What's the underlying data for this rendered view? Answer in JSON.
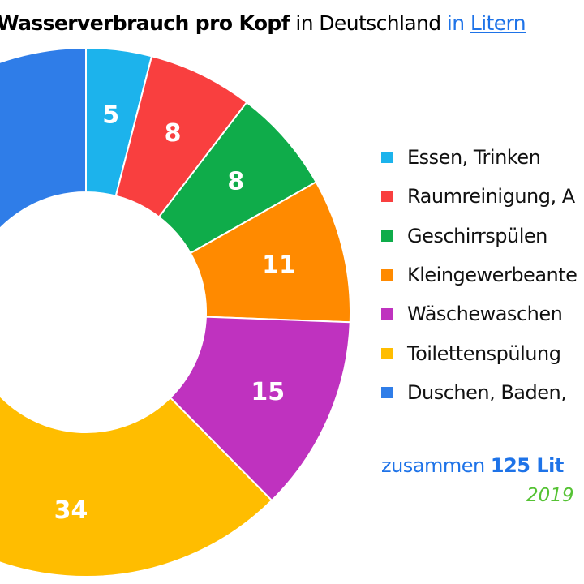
{
  "title": {
    "bold": "Wasserverbrauch pro Kopf",
    "middle": "in Deutschland",
    "unit_prefix": "in",
    "unit": "Litern"
  },
  "chart_data": {
    "type": "pie",
    "donut": true,
    "categories": [
      "Essen, Trinken",
      "Raumreinigung, A",
      "Geschirrspülen",
      "Kleingewerbeante",
      "Wäschewaschen",
      "Toilettenspülung",
      "Duschen, Baden,"
    ],
    "values": [
      5,
      8,
      8,
      11,
      15,
      34,
      44
    ],
    "value_labels": [
      "5",
      "8",
      "8",
      "11",
      "15",
      "34",
      ""
    ],
    "colors": [
      "#1cb3ec",
      "#f93f3f",
      "#0fac4a",
      "#ff8a00",
      "#bf32bf",
      "#ffbd00",
      "#2f7de8"
    ],
    "legend_position": "right"
  },
  "total": {
    "prefix": "zusammen",
    "value": "125 Lit"
  },
  "year": "2019"
}
